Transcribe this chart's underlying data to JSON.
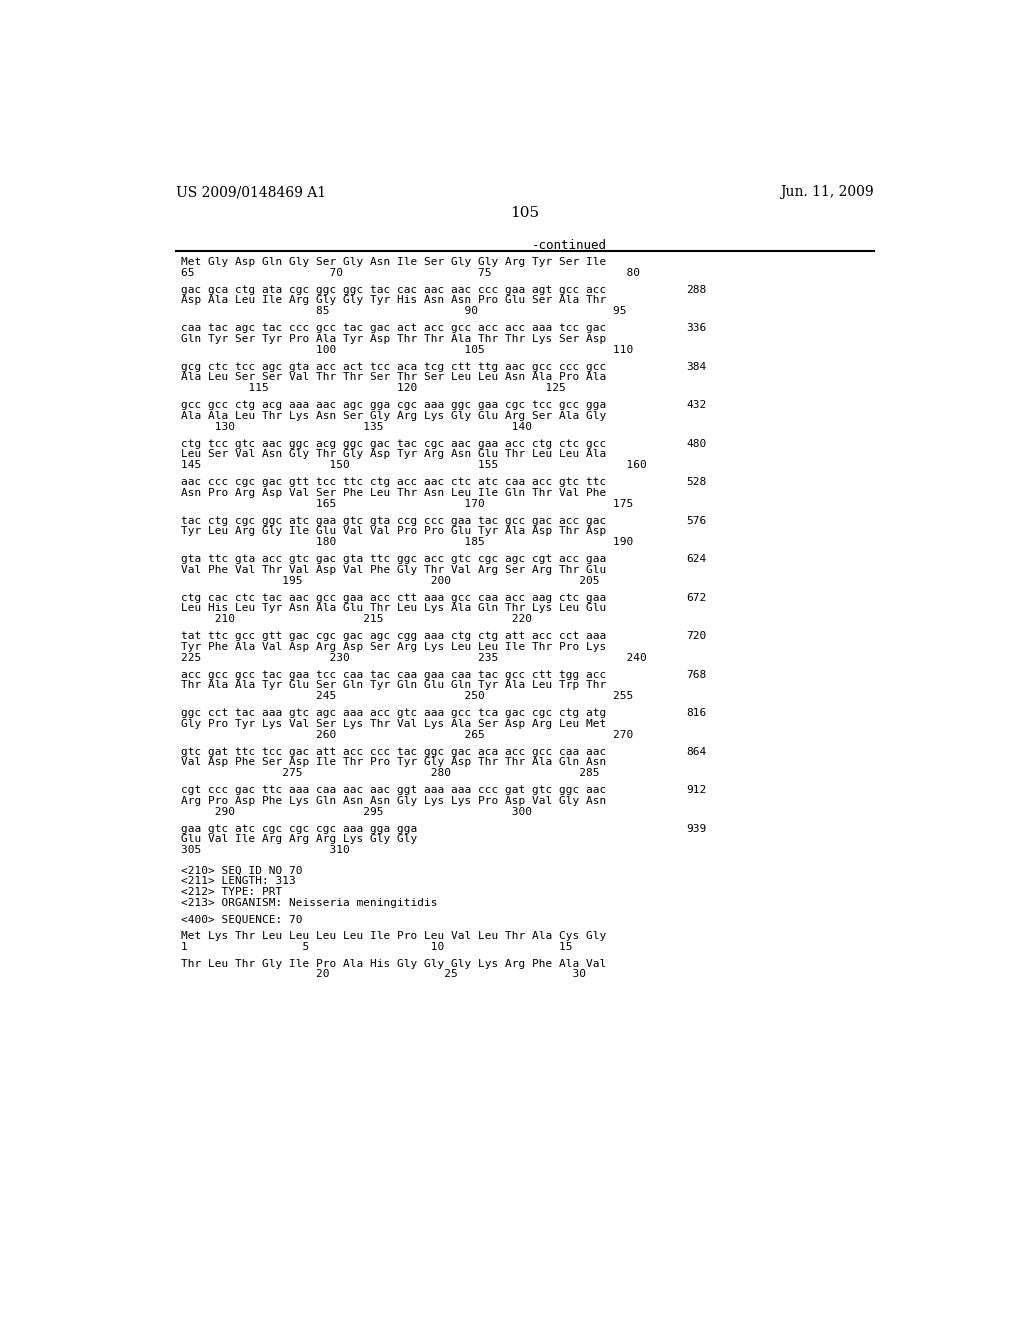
{
  "header_left": "US 2009/0148469 A1",
  "header_right": "Jun. 11, 2009",
  "page_number": "105",
  "continued_label": "-continued",
  "background_color": "#ffffff",
  "text_color": "#000000",
  "blocks": [
    {
      "line1": "Met Gly Asp Gln Gly Ser Gly Asn Ile Ser Gly Gly Arg Tyr Ser Ile",
      "line2": "65                    70                    75                    80",
      "num": null,
      "type": "aa_start"
    },
    {
      "line1": "gac gca ctg ata cgc ggc ggc tac cac aac aac ccc gaa agt gcc acc",
      "line2": "Asp Ala Leu Ile Arg Gly Gly Tyr His Asn Asn Pro Glu Ser Ala Thr",
      "line3": "                    85                    90                    95",
      "num": "288"
    },
    {
      "line1": "caa tac agc tac ccc gcc tac gac act acc gcc acc acc aaa tcc gac",
      "line2": "Gln Tyr Ser Tyr Pro Ala Tyr Asp Thr Thr Ala Thr Thr Lys Ser Asp",
      "line3": "                    100                   105                   110",
      "num": "336"
    },
    {
      "line1": "gcg ctc tcc agc gta acc act tcc aca tcg ctt ttg aac gcc ccc gcc",
      "line2": "Ala Leu Ser Ser Val Thr Thr Ser Thr Ser Leu Leu Asn Ala Pro Ala",
      "line3": "          115                   120                   125",
      "num": "384"
    },
    {
      "line1": "gcc gcc ctg acg aaa aac agc gga cgc aaa ggc gaa cgc tcc gcc gga",
      "line2": "Ala Ala Leu Thr Lys Asn Ser Gly Arg Lys Gly Glu Arg Ser Ala Gly",
      "line3": "     130                   135                   140",
      "num": "432"
    },
    {
      "line1": "ctg tcc gtc aac ggc acg ggc gac tac cgc aac gaa acc ctg ctc gcc",
      "line2": "Leu Ser Val Asn Gly Thr Gly Asp Tyr Arg Asn Glu Thr Leu Leu Ala",
      "line3": "145                   150                   155                   160",
      "num": "480"
    },
    {
      "line1": "aac ccc cgc gac gtt tcc ttc ctg acc aac ctc atc caa acc gtc ttc",
      "line2": "Asn Pro Arg Asp Val Ser Phe Leu Thr Asn Leu Ile Gln Thr Val Phe",
      "line3": "                    165                   170                   175",
      "num": "528"
    },
    {
      "line1": "tac ctg cgc ggc atc gaa gtc gta ccg ccc gaa tac gcc gac acc gac",
      "line2": "Tyr Leu Arg Gly Ile Glu Val Val Pro Pro Glu Tyr Ala Asp Thr Asp",
      "line3": "                    180                   185                   190",
      "num": "576"
    },
    {
      "line1": "gta ttc gta acc gtc gac gta ttc ggc acc gtc cgc agc cgt acc gaa",
      "line2": "Val Phe Val Thr Val Asp Val Phe Gly Thr Val Arg Ser Arg Thr Glu",
      "line3": "               195                   200                   205",
      "num": "624"
    },
    {
      "line1": "ctg cac ctc tac aac gcc gaa acc ctt aaa gcc caa acc aag ctc gaa",
      "line2": "Leu His Leu Tyr Asn Ala Glu Thr Leu Lys Ala Gln Thr Lys Leu Glu",
      "line3": "     210                   215                   220",
      "num": "672"
    },
    {
      "line1": "tat ttc gcc gtt gac cgc gac agc cgg aaa ctg ctg att acc cct aaa",
      "line2": "Tyr Phe Ala Val Asp Arg Asp Ser Arg Lys Leu Leu Ile Thr Pro Lys",
      "line3": "225                   230                   235                   240",
      "num": "720"
    },
    {
      "line1": "acc gcc gcc tac gaa tcc caa tac caa gaa caa tac gcc ctt tgg acc",
      "line2": "Thr Ala Ala Tyr Glu Ser Gln Tyr Gln Glu Gln Tyr Ala Leu Trp Thr",
      "line3": "                    245                   250                   255",
      "num": "768"
    },
    {
      "line1": "ggc cct tac aaa gtc agc aaa acc gtc aaa gcc tca gac cgc ctg atg",
      "line2": "Gly Pro Tyr Lys Val Ser Lys Thr Val Lys Ala Ser Asp Arg Leu Met",
      "line3": "                    260                   265                   270",
      "num": "816"
    },
    {
      "line1": "gtc gat ttc tcc gac att acc ccc tac ggc gac aca acc gcc caa aac",
      "line2": "Val Asp Phe Ser Asp Ile Thr Pro Tyr Gly Asp Thr Thr Ala Gln Asn",
      "line3": "               275                   280                   285",
      "num": "864"
    },
    {
      "line1": "cgt ccc gac ttc aaa caa aac aac ggt aaa aaa ccc gat gtc ggc aac",
      "line2": "Arg Pro Asp Phe Lys Gln Asn Asn Gly Lys Lys Pro Asp Val Gly Asn",
      "line3": "     290                   295                   300",
      "num": "912"
    },
    {
      "line1": "gaa gtc atc cgc cgc cgc aaa gga gga",
      "line2": "Glu Val Ile Arg Arg Arg Lys Gly Gly",
      "line3": "305                   310",
      "num": "939"
    }
  ],
  "footer_lines": [
    "<210> SEQ ID NO 70",
    "<211> LENGTH: 313",
    "<212> TYPE: PRT",
    "<213> ORGANISM: Neisseria meningitidis",
    "",
    "<400> SEQUENCE: 70",
    "",
    "Met Lys Thr Leu Leu Leu Leu Ile Pro Leu Val Leu Thr Ala Cys Gly",
    "1                 5                  10                 15",
    "",
    "Thr Leu Thr Gly Ile Pro Ala His Gly Gly Gly Lys Arg Phe Ala Val",
    "                    20                 25                 30"
  ]
}
